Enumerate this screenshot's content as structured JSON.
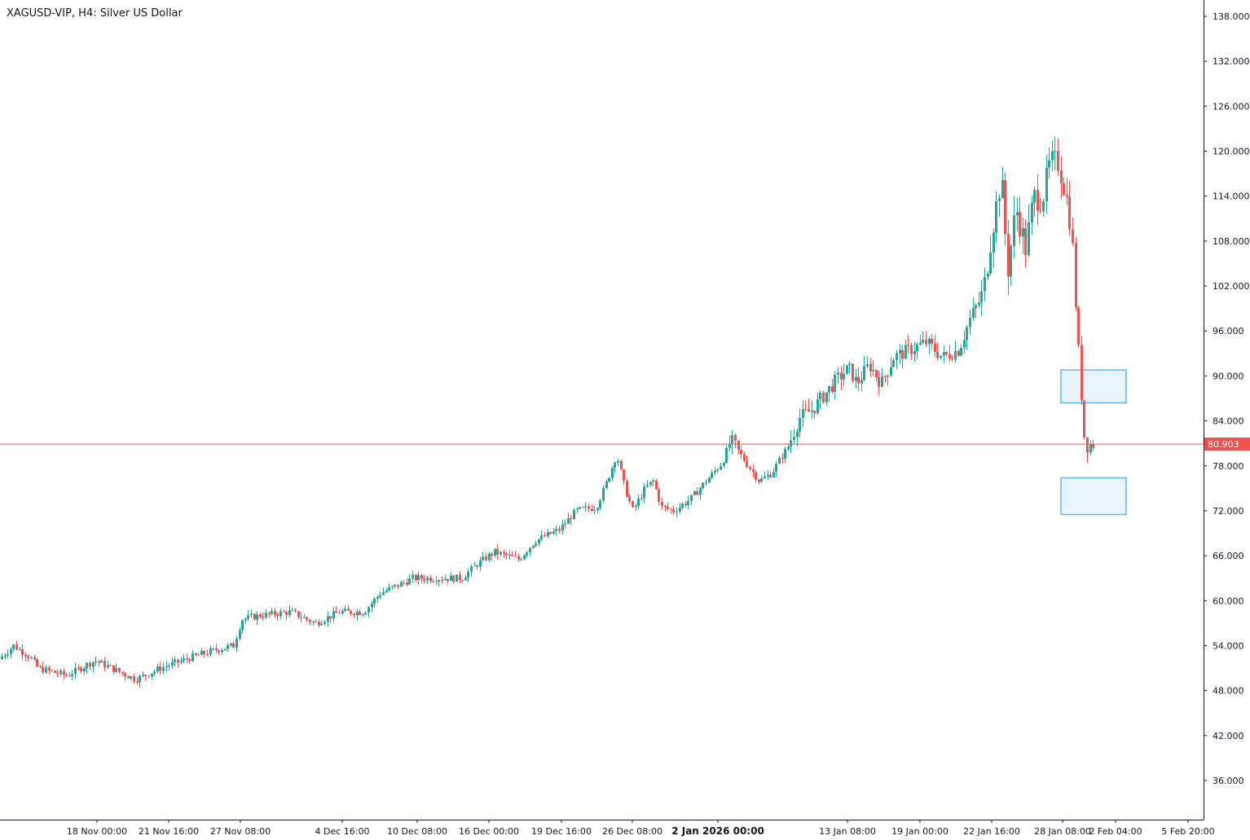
{
  "header": {
    "title": "XAGUSD-VIP, H4: Silver US Dollar"
  },
  "colors": {
    "up": "#26a69a",
    "down": "#ef5350",
    "price_line": "#ef5350",
    "zone_fill": "#e3f2fd",
    "zone_border": "#64b5f6",
    "axis": "#131722"
  },
  "chart_data": {
    "type": "candlestick",
    "title": "XAGUSD-VIP, H4: Silver US Dollar",
    "timeframe": "H4",
    "symbol": "XAGUSD-VIP",
    "y_axis": {
      "side": "right",
      "ylim": [
        30.0,
        140.0
      ],
      "ticks": [
        "138.000",
        "132.000",
        "126.000",
        "120.000",
        "114.000",
        "108.000",
        "102.000",
        "96.000",
        "90.000",
        "84.000",
        "78.000",
        "72.000",
        "66.000",
        "60.000",
        "54.000",
        "48.000",
        "42.000",
        "36.000"
      ]
    },
    "x_axis": {
      "ticks": [
        {
          "label": "18 Nov 00:00",
          "bold": false
        },
        {
          "label": "21 Nov 16:00",
          "bold": false
        },
        {
          "label": "27 Nov 08:00",
          "bold": false
        },
        {
          "label": "4 Dec 16:00",
          "bold": false
        },
        {
          "label": "10 Dec 08:00",
          "bold": false
        },
        {
          "label": "16 Dec 00:00",
          "bold": false
        },
        {
          "label": "19 Dec 16:00",
          "bold": false
        },
        {
          "label": "26 Dec 08:00",
          "bold": false
        },
        {
          "label": "2 Jan 2026 00:00",
          "bold": true
        },
        {
          "label": "13 Jan 08:00",
          "bold": false
        },
        {
          "label": "19 Jan 00:00",
          "bold": false
        },
        {
          "label": "22 Jan 16:00",
          "bold": false
        },
        {
          "label": "28 Jan 08:00",
          "bold": false
        },
        {
          "label": "2 Feb 04:00",
          "bold": false
        },
        {
          "label": "5 Feb 20:00",
          "bold": false
        }
      ]
    },
    "current_price": {
      "value": 80.903,
      "label": "80.903"
    },
    "zones": [
      {
        "from": 86.4,
        "to": 90.8
      },
      {
        "from": 71.5,
        "to": 76.4
      }
    ],
    "price_path": [
      [
        0,
        52.0
      ],
      [
        20,
        54.0
      ],
      [
        40,
        52.5
      ],
      [
        50,
        51.0
      ],
      [
        85,
        50.0
      ],
      [
        120,
        52.0
      ],
      [
        160,
        50.0
      ],
      [
        170,
        49.5
      ],
      [
        200,
        51.0
      ],
      [
        240,
        52.5
      ],
      [
        270,
        53.5
      ],
      [
        290,
        54.0
      ],
      [
        300,
        57.5
      ],
      [
        320,
        58.0
      ],
      [
        360,
        58.5
      ],
      [
        390,
        57.0
      ],
      [
        420,
        58.5
      ],
      [
        450,
        58.5
      ],
      [
        470,
        61.0
      ],
      [
        490,
        62.0
      ],
      [
        510,
        63.0
      ],
      [
        540,
        63.0
      ],
      [
        570,
        63.0
      ],
      [
        590,
        65.0
      ],
      [
        610,
        66.5
      ],
      [
        640,
        65.5
      ],
      [
        660,
        68.0
      ],
      [
        690,
        69.5
      ],
      [
        710,
        72.0
      ],
      [
        735,
        72.5
      ],
      [
        745,
        75.0
      ],
      [
        760,
        79.5
      ],
      [
        770,
        75.0
      ],
      [
        780,
        72.0
      ],
      [
        795,
        75.0
      ],
      [
        805,
        76.0
      ],
      [
        815,
        72.5
      ],
      [
        830,
        72.0
      ],
      [
        850,
        73.5
      ],
      [
        870,
        76.0
      ],
      [
        890,
        78.5
      ],
      [
        900,
        81.5
      ],
      [
        915,
        79.0
      ],
      [
        935,
        76.0
      ],
      [
        950,
        77.0
      ],
      [
        970,
        80.5
      ],
      [
        985,
        84.5
      ],
      [
        1000,
        85.5
      ],
      [
        1015,
        87.5
      ],
      [
        1030,
        89.5
      ],
      [
        1045,
        91.0
      ],
      [
        1055,
        89.0
      ],
      [
        1070,
        91.5
      ],
      [
        1085,
        89.0
      ],
      [
        1100,
        92.5
      ],
      [
        1120,
        93.5
      ],
      [
        1140,
        94.5
      ],
      [
        1160,
        92.5
      ],
      [
        1180,
        93.5
      ],
      [
        1195,
        98.0
      ],
      [
        1210,
        101.0
      ],
      [
        1220,
        109.0
      ],
      [
        1232,
        116.5
      ],
      [
        1240,
        104.0
      ],
      [
        1250,
        112.5
      ],
      [
        1262,
        107.0
      ],
      [
        1272,
        114.0
      ],
      [
        1282,
        113.5
      ],
      [
        1292,
        118.5
      ],
      [
        1302,
        118.5
      ],
      [
        1310,
        115.0
      ],
      [
        1318,
        110.0
      ],
      [
        1324,
        98.0
      ],
      [
        1330,
        88.0
      ],
      [
        1334,
        82.0
      ],
      [
        1338,
        80.5
      ],
      [
        1342,
        80.9
      ]
    ]
  }
}
